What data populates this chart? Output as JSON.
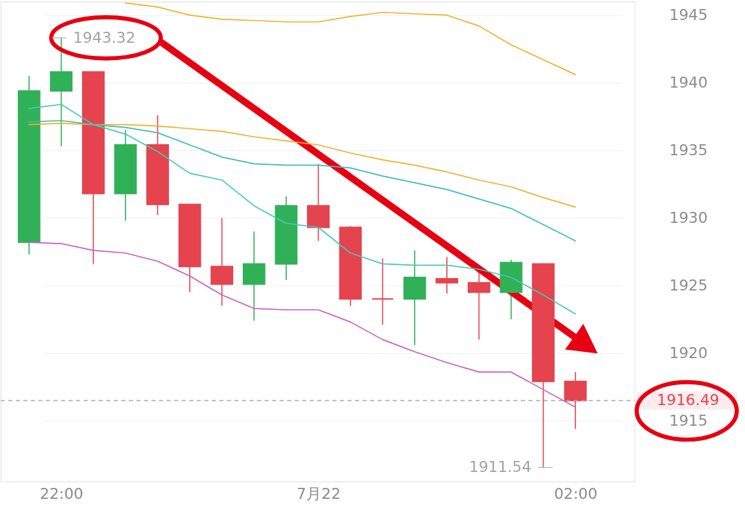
{
  "chart_data": {
    "type": "candlestick",
    "categories": [
      null,
      "22:00",
      null,
      null,
      null,
      null,
      null,
      null,
      null,
      "7月22",
      null,
      null,
      null,
      null,
      null,
      null,
      null,
      "02:00"
    ],
    "ohlc": [
      [
        1928.2,
        1940.5,
        1927.3,
        1939.4
      ],
      [
        1939.4,
        1943.32,
        1935.3,
        1940.8
      ],
      [
        1940.8,
        1940.8,
        1926.6,
        1931.8
      ],
      [
        1931.8,
        1936.5,
        1929.8,
        1935.4
      ],
      [
        1935.4,
        1937.6,
        1930.2,
        1931.0
      ],
      [
        1931.0,
        1931.0,
        1924.5,
        1926.4
      ],
      [
        1926.4,
        1930.0,
        1923.5,
        1925.1
      ],
      [
        1925.1,
        1929.0,
        1922.4,
        1926.6
      ],
      [
        1926.6,
        1931.6,
        1925.4,
        1930.9
      ],
      [
        1930.9,
        1934.0,
        1928.3,
        1929.3
      ],
      [
        1929.3,
        1929.4,
        1923.5,
        1924.0
      ],
      [
        1924.0,
        1927.0,
        1922.1,
        1924.0
      ],
      [
        1924.0,
        1927.6,
        1920.6,
        1925.6
      ],
      [
        1925.5,
        1927.1,
        1924.4,
        1925.2
      ],
      [
        1925.2,
        1926.0,
        1921.0,
        1924.5
      ],
      [
        1924.5,
        1926.9,
        1922.5,
        1926.7
      ],
      [
        1926.6,
        1926.6,
        1911.54,
        1917.9
      ],
      [
        1917.9,
        1918.6,
        1914.4,
        1916.49
      ]
    ],
    "colors": [
      "#30b158",
      "#30b158",
      "#e5434e",
      "#30b158",
      "#e5434e",
      "#e5434e",
      "#e5434e",
      "#30b158",
      "#30b158",
      "#e5434e",
      "#e5434e",
      "#e5434e",
      "#30b158",
      "#e5434e",
      "#e5434e",
      "#30b158",
      "#e5434e",
      "#e5434e"
    ],
    "series": [
      {
        "type": "line",
        "color": "#f0b12a",
        "values": [
          null,
          null,
          null,
          1945.9,
          1945.6,
          1945.0,
          1944.7,
          1944.6,
          1944.5,
          1944.5,
          1944.9,
          1945.2,
          1945.1,
          1945.0,
          1944.2,
          1942.8,
          1941.7,
          1940.6
        ]
      },
      {
        "type": "line",
        "color": "#f0b12a",
        "values": [
          1936.9,
          1937.0,
          1936.9,
          1936.9,
          1936.8,
          1936.6,
          1936.4,
          1936.0,
          1935.7,
          1935.4,
          1934.8,
          1934.3,
          1933.9,
          1933.4,
          1932.8,
          1932.3,
          1931.5,
          1930.8
        ]
      },
      {
        "type": "line",
        "color": "#3fbfb0",
        "values": [
          1937.1,
          1937.2,
          1936.9,
          1936.7,
          1936.3,
          1935.4,
          1934.5,
          1934.0,
          1933.9,
          1933.9,
          1933.7,
          1933.1,
          1932.6,
          1932.1,
          1931.4,
          1930.7,
          1929.5,
          1928.3
        ]
      },
      {
        "type": "line",
        "color": "#45c9b8",
        "values": [
          1938.1,
          1938.4,
          1936.9,
          1936.2,
          1934.9,
          1933.3,
          1932.8,
          1930.9,
          1929.6,
          1929.3,
          1927.4,
          1926.6,
          1926.5,
          1926.5,
          1926.2,
          1925.6,
          1924.3,
          1922.9
        ]
      },
      {
        "type": "line",
        "color": "#c85fc0",
        "values": [
          1928.2,
          1928.1,
          1927.6,
          1927.4,
          1926.8,
          1925.7,
          1924.3,
          1923.3,
          1923.2,
          1923.2,
          1922.3,
          1921.0,
          1920.1,
          1919.3,
          1918.6,
          1918.6,
          1917.3,
          1916.0
        ]
      }
    ],
    "ylim": [
      1910.5,
      1946
    ],
    "yticks": [
      1915,
      1920,
      1925,
      1930,
      1935,
      1940,
      1945
    ],
    "grid": "y",
    "ref_lines": [
      {
        "axis": "y",
        "value": 1916.49,
        "label": "1916.49",
        "color": "#a8a8a8",
        "line_style": "dashed"
      }
    ],
    "annotations": [
      {
        "text": "1943.32",
        "x": "22:00",
        "y": 1943.32
      },
      "1911.54"
    ]
  }
}
